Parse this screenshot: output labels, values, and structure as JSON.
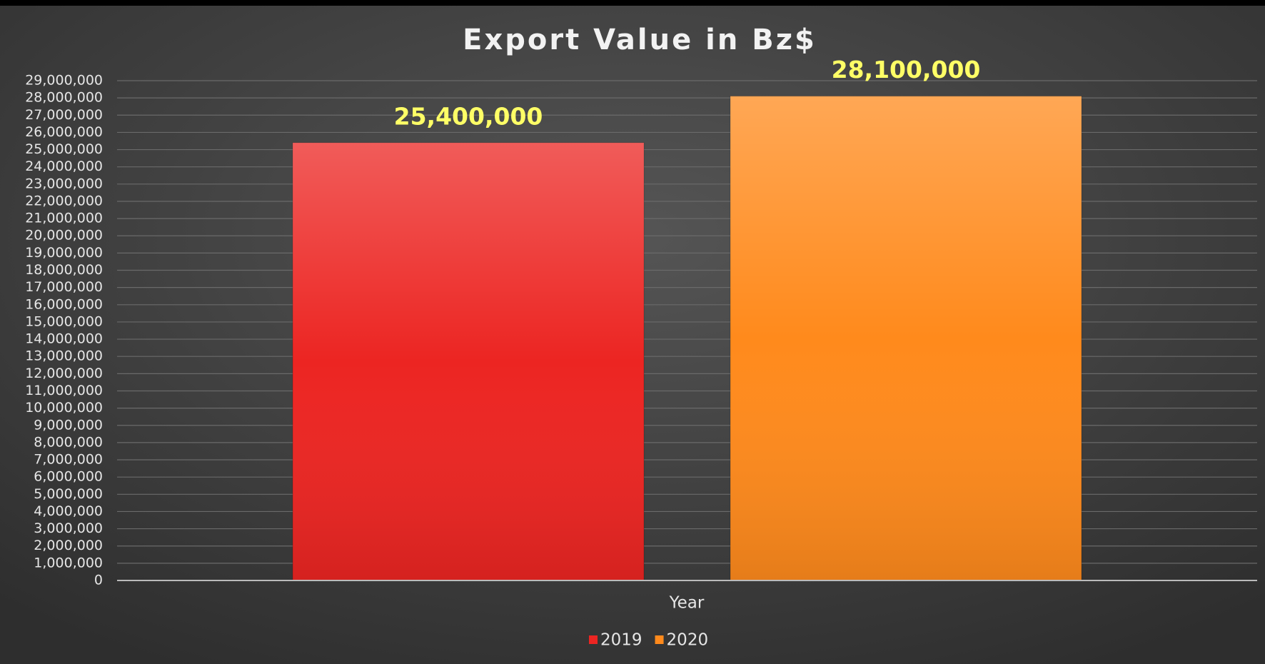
{
  "chart_data": {
    "type": "bar",
    "title": "Export Value in Bz$",
    "x_label": "Year",
    "categories": [
      "Year"
    ],
    "series": [
      {
        "name": "2019",
        "color": "#ec2522",
        "values": [
          25400000
        ],
        "value_labels": [
          "25,400,000"
        ]
      },
      {
        "name": "2020",
        "color": "#ff8a1c",
        "values": [
          28100000
        ],
        "value_labels": [
          "28,100,000"
        ]
      }
    ],
    "ylim": [
      0,
      29000000
    ],
    "yticks": [
      {
        "value": 0,
        "label": "0"
      },
      {
        "value": 1000000,
        "label": "1,000,000"
      },
      {
        "value": 2000000,
        "label": "2,000,000"
      },
      {
        "value": 3000000,
        "label": "3,000,000"
      },
      {
        "value": 4000000,
        "label": "4,000,000"
      },
      {
        "value": 5000000,
        "label": "5,000,000"
      },
      {
        "value": 6000000,
        "label": "6,000,000"
      },
      {
        "value": 7000000,
        "label": "7,000,000"
      },
      {
        "value": 8000000,
        "label": "8,000,000"
      },
      {
        "value": 9000000,
        "label": "9,000,000"
      },
      {
        "value": 10000000,
        "label": "10,000,000"
      },
      {
        "value": 11000000,
        "label": "11,000,000"
      },
      {
        "value": 12000000,
        "label": "12,000,000"
      },
      {
        "value": 13000000,
        "label": "13,000,000"
      },
      {
        "value": 14000000,
        "label": "14,000,000"
      },
      {
        "value": 15000000,
        "label": "15,000,000"
      },
      {
        "value": 16000000,
        "label": "16,000,000"
      },
      {
        "value": 17000000,
        "label": "17,000,000"
      },
      {
        "value": 18000000,
        "label": "18,000,000"
      },
      {
        "value": 19000000,
        "label": "19,000,000"
      },
      {
        "value": 20000000,
        "label": "20,000,000"
      },
      {
        "value": 21000000,
        "label": "21,000,000"
      },
      {
        "value": 22000000,
        "label": "22,000,000"
      },
      {
        "value": 23000000,
        "label": "23,000,000"
      },
      {
        "value": 24000000,
        "label": "24,000,000"
      },
      {
        "value": 25000000,
        "label": "25,000,000"
      },
      {
        "value": 26000000,
        "label": "26,000,000"
      },
      {
        "value": 27000000,
        "label": "27,000,000"
      },
      {
        "value": 28000000,
        "label": "28,000,000"
      },
      {
        "value": 29000000,
        "label": "29,000,000"
      }
    ],
    "grid": true,
    "legend": "bottom"
  }
}
